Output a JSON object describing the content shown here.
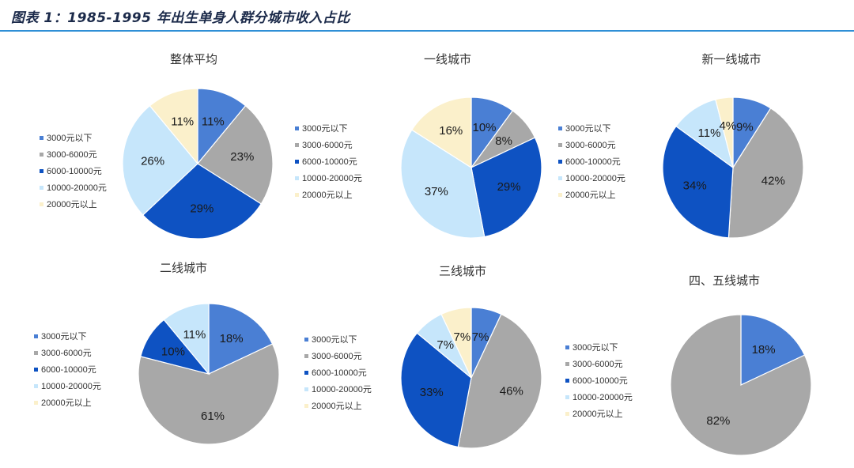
{
  "header": {
    "title": "图表 1：1985-1995 年出生单身人群分城市收入占比"
  },
  "legend_categories": [
    "3000元以下",
    "3000-6000元",
    "6000-10000元",
    "10000-20000元",
    "20000元以上"
  ],
  "colors": [
    "#4a7fd4",
    "#a8a8a8",
    "#0e52c2",
    "#c6e6fb",
    "#fbf0cb"
  ],
  "chart_data": [
    {
      "type": "pie",
      "title": "整体平均",
      "categories": [
        "3000元以下",
        "3000-6000元",
        "6000-10000元",
        "10000-20000元",
        "20000元以上"
      ],
      "values": [
        11,
        23,
        29,
        26,
        11
      ]
    },
    {
      "type": "pie",
      "title": "一线城市",
      "categories": [
        "3000元以下",
        "3000-6000元",
        "6000-10000元",
        "10000-20000元",
        "20000元以上"
      ],
      "values": [
        10,
        8,
        29,
        37,
        16
      ]
    },
    {
      "type": "pie",
      "title": "新一线城市",
      "categories": [
        "3000元以下",
        "3000-6000元",
        "6000-10000元",
        "10000-20000元",
        "20000元以上"
      ],
      "values": [
        9,
        42,
        34,
        11,
        4
      ]
    },
    {
      "type": "pie",
      "title": "二线城市",
      "categories": [
        "3000元以下",
        "3000-6000元",
        "6000-10000元",
        "10000-20000元",
        "20000元以上"
      ],
      "values": [
        18,
        61,
        10,
        11,
        0
      ]
    },
    {
      "type": "pie",
      "title": "三线城市",
      "categories": [
        "3000元以下",
        "3000-6000元",
        "6000-10000元",
        "10000-20000元",
        "20000元以上"
      ],
      "values": [
        7,
        46,
        33,
        7,
        7
      ]
    },
    {
      "type": "pie",
      "title": "四、五线城市",
      "categories": [
        "3000元以下",
        "3000-6000元",
        "6000-10000元",
        "10000-20000元",
        "20000元以上"
      ],
      "values": [
        18,
        82,
        0,
        0,
        0
      ]
    }
  ]
}
